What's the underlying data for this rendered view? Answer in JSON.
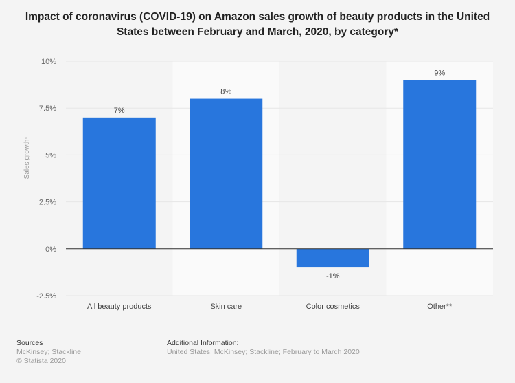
{
  "chart_data": {
    "type": "bar",
    "title": "Impact of coronavirus (COVID-19) on Amazon sales growth of beauty products in the United States between February and March, 2020, by category*",
    "categories": [
      "All beauty products",
      "Skin care",
      "Color cosmetics",
      "Other**"
    ],
    "values": [
      7,
      8,
      -1,
      9
    ],
    "data_labels": [
      "7%",
      "8%",
      "-1%",
      "9%"
    ],
    "ylabel": "Sales growth*",
    "xlabel": "",
    "ylim": [
      -2.5,
      10
    ],
    "yticks": [
      -2.5,
      0,
      2.5,
      5,
      7.5,
      10
    ],
    "ytick_labels": [
      "-2.5%",
      "0%",
      "2.5%",
      "5%",
      "7.5%",
      "10%"
    ],
    "grid": true,
    "bar_color": "#2876dd"
  },
  "footer": {
    "sources_heading": "Sources",
    "sources_text": "McKinsey; Stackline",
    "copyright": "© Statista 2020",
    "additional_heading": "Additional Information:",
    "additional_text": "United States; McKinsey; Stackline; February to March 2020"
  }
}
